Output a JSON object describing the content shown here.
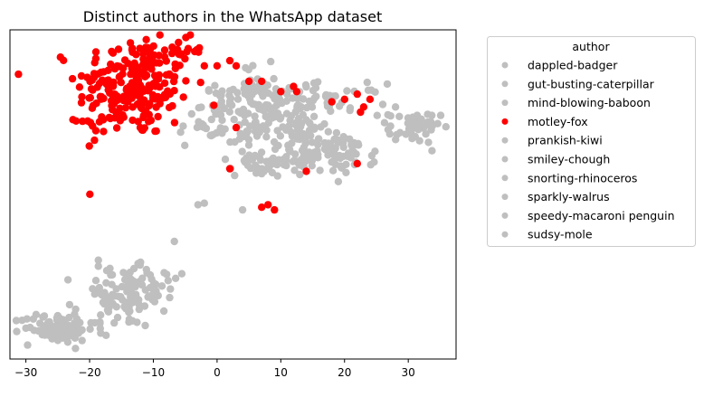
{
  "chart_data": {
    "type": "scatter",
    "title": "Distinct authors in the WhatsApp dataset",
    "xlabel": "",
    "ylabel": "",
    "xlim": [
      -32.5,
      37.5
    ],
    "ylim": [
      -28,
      36
    ],
    "x_ticks": [
      -30,
      -20,
      -10,
      0,
      10,
      20,
      30
    ],
    "y_ticks_shown": false,
    "legend": {
      "title": "author",
      "placement": "outside-right-top",
      "entries": [
        {
          "name": "dappled-badger",
          "color": "#bfbfbf"
        },
        {
          "name": "gut-busting-caterpillar",
          "color": "#bfbfbf"
        },
        {
          "name": "mind-blowing-baboon",
          "color": "#bfbfbf"
        },
        {
          "name": "motley-fox",
          "color": "#ff0000"
        },
        {
          "name": "prankish-kiwi",
          "color": "#bfbfbf"
        },
        {
          "name": "smiley-chough",
          "color": "#bfbfbf"
        },
        {
          "name": "snorting-rhinoceros",
          "color": "#bfbfbf"
        },
        {
          "name": "sparkly-walrus",
          "color": "#bfbfbf"
        },
        {
          "name": "speedy-macaroni penguin",
          "color": "#bfbfbf"
        },
        {
          "name": "sudsy-mole",
          "color": "#bfbfbf"
        }
      ]
    },
    "clusters": [
      {
        "series": "motley-fox",
        "cx": -13,
        "cy": 25,
        "sx": 4.5,
        "sy": 5,
        "n": 230
      },
      {
        "series": "motley-fox",
        "cx": -5,
        "cy": 32,
        "sx": 1.3,
        "sy": 1.5,
        "n": 14
      },
      {
        "series": "motley-fox",
        "cx": -20,
        "cy": 17,
        "sx": 1.2,
        "sy": 1.3,
        "n": 8
      },
      {
        "series": "others",
        "cx": 5,
        "cy": 24,
        "sx": 2.5,
        "sy": 2.5,
        "n": 50
      },
      {
        "series": "others",
        "cx": 10,
        "cy": 21,
        "sx": 3,
        "sy": 2.5,
        "n": 60
      },
      {
        "series": "others",
        "cx": -1,
        "cy": 18,
        "sx": 2.5,
        "sy": 2.5,
        "n": 40
      },
      {
        "series": "others",
        "cx": 6,
        "cy": 17,
        "sx": 2.5,
        "sy": 2,
        "n": 35
      },
      {
        "series": "others",
        "cx": 17,
        "cy": 22.5,
        "sx": 4.5,
        "sy": 1.5,
        "n": 45
      },
      {
        "series": "others",
        "cx": 19,
        "cy": 12,
        "sx": 3,
        "sy": 2,
        "n": 70
      },
      {
        "series": "others",
        "cx": 9,
        "cy": 10.5,
        "sx": 3,
        "sy": 1.5,
        "n": 60
      },
      {
        "series": "others",
        "cx": 14,
        "cy": 15.5,
        "sx": 2,
        "sy": 1.5,
        "n": 30
      },
      {
        "series": "others",
        "cx": 31,
        "cy": 17,
        "sx": 2,
        "sy": 1.5,
        "n": 50
      },
      {
        "series": "others",
        "cx": -15,
        "cy": -16,
        "sx": 3.5,
        "sy": 3,
        "n": 90
      },
      {
        "series": "others",
        "cx": -25,
        "cy": -22,
        "sx": 3,
        "sy": 1.5,
        "n": 90
      },
      {
        "series": "others",
        "cx": -10,
        "cy": -12,
        "sx": 2,
        "sy": 2,
        "n": 25
      }
    ],
    "points": [
      {
        "series": "motley-fox",
        "x": 2,
        "y": 30
      },
      {
        "series": "motley-fox",
        "x": -2,
        "y": 29
      },
      {
        "series": "motley-fox",
        "x": 0,
        "y": 29
      },
      {
        "series": "motley-fox",
        "x": 3,
        "y": 29
      },
      {
        "series": "motley-fox",
        "x": 5,
        "y": 26
      },
      {
        "series": "motley-fox",
        "x": 7,
        "y": 26
      },
      {
        "series": "motley-fox",
        "x": 10,
        "y": 24
      },
      {
        "series": "motley-fox",
        "x": 12,
        "y": 25
      },
      {
        "series": "motley-fox",
        "x": 12.5,
        "y": 24
      },
      {
        "series": "motley-fox",
        "x": 18,
        "y": 22
      },
      {
        "series": "motley-fox",
        "x": 20,
        "y": 22.5
      },
      {
        "series": "motley-fox",
        "x": 22,
        "y": 23.5
      },
      {
        "series": "motley-fox",
        "x": 24,
        "y": 22.5
      },
      {
        "series": "motley-fox",
        "x": 22.5,
        "y": 20
      },
      {
        "series": "motley-fox",
        "x": 23,
        "y": 21
      },
      {
        "series": "motley-fox",
        "x": 3,
        "y": 17
      },
      {
        "series": "motley-fox",
        "x": 2,
        "y": 9
      },
      {
        "series": "motley-fox",
        "x": 14,
        "y": 8.5
      },
      {
        "series": "motley-fox",
        "x": 22,
        "y": 10
      },
      {
        "series": "motley-fox",
        "x": 8,
        "y": 2
      },
      {
        "series": "motley-fox",
        "x": 9,
        "y": 1
      },
      {
        "series": "motley-fox",
        "x": 7,
        "y": 1.5
      },
      {
        "series": "others",
        "x": -3,
        "y": 2
      },
      {
        "series": "others",
        "x": -2,
        "y": 2.3
      },
      {
        "series": "others",
        "x": 4,
        "y": 1
      },
      {
        "series": "others",
        "x": 28,
        "y": 21
      },
      {
        "series": "others",
        "x": 26,
        "y": 21.5
      },
      {
        "series": "others",
        "x": -30,
        "y": -22
      }
    ]
  }
}
